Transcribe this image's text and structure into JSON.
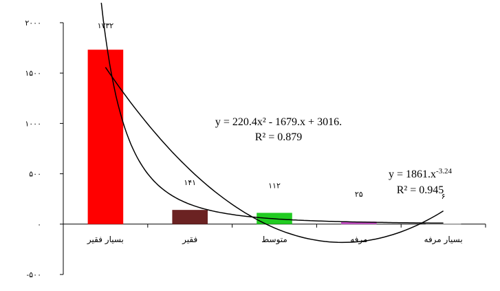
{
  "chart_data": {
    "type": "bar",
    "categories": [
      "بسیار فقیر",
      "فقیر",
      "متوسط",
      "مرفه",
      "بسیار مرفه"
    ],
    "values": [
      1732,
      141,
      112,
      25,
      6
    ],
    "data_labels": [
      "۱۷۳۲",
      "۱۴۱",
      "۱۱۲",
      "۲۵",
      "۶"
    ],
    "bar_colors": [
      "#ff0000",
      "#6b2222",
      "#22cc22",
      "#cc55cc",
      "#a6a6a6"
    ],
    "ylim": [
      -500,
      2000
    ],
    "yticks": [
      {
        "value": 2000,
        "label": "۲۰۰۰"
      },
      {
        "value": 1500,
        "label": "۱۵۰۰"
      },
      {
        "value": 1000,
        "label": "۱۰۰۰"
      },
      {
        "value": 500,
        "label": "۵۰۰"
      },
      {
        "value": 0,
        "label": "۰"
      },
      {
        "value": -500,
        "label": "-۵۰۰"
      }
    ],
    "title": "",
    "xlabel": "",
    "ylabel": "",
    "grid": false,
    "trendlines": [
      {
        "type": "polynomial",
        "coefficients": [
          220.4,
          -1679,
          3016
        ],
        "equation": "y = 220.4x² - 1679.x + 3016.",
        "r2_label": "R² = 0.879"
      },
      {
        "type": "power",
        "coefficient": 1861,
        "exponent": -3.24,
        "equation_prefix": "y = 1861.x",
        "equation_exponent": "-3.24",
        "r2_label": "R² = 0.945"
      }
    ]
  }
}
